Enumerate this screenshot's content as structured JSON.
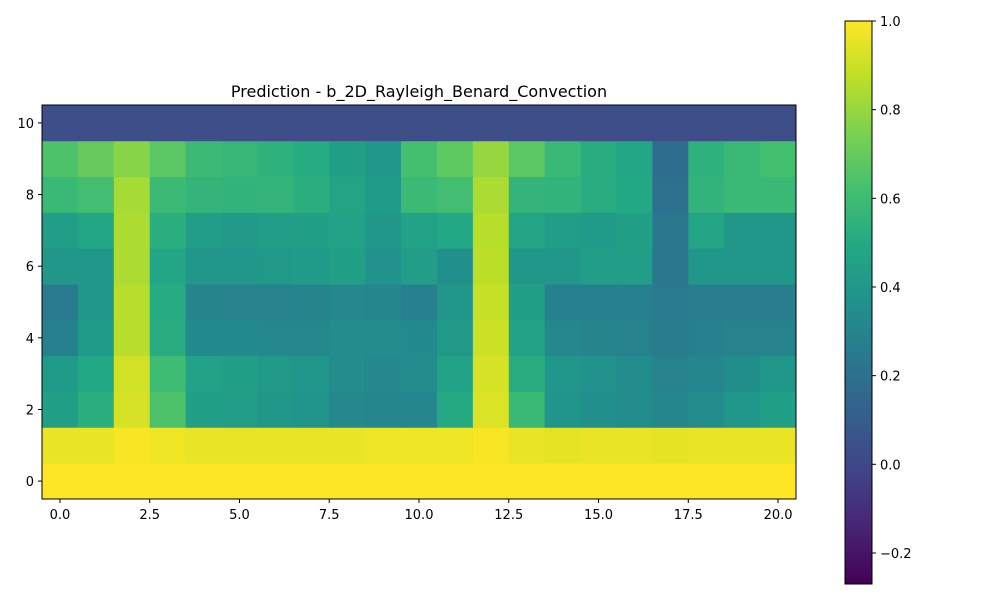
{
  "chart_data": {
    "type": "heatmap",
    "title": "Prediction - b_2D_Rayleigh_Benard_Convection",
    "xlabel": "",
    "ylabel": "",
    "colormap": "viridis",
    "xlim": [
      -0.5,
      20.5
    ],
    "ylim": [
      -0.5,
      10.5
    ],
    "x_ticks": [
      {
        "value": 0.0,
        "label": "0.0"
      },
      {
        "value": 2.5,
        "label": "2.5"
      },
      {
        "value": 5.0,
        "label": "5.0"
      },
      {
        "value": 7.5,
        "label": "7.5"
      },
      {
        "value": 10.0,
        "label": "10.0"
      },
      {
        "value": 12.5,
        "label": "12.5"
      },
      {
        "value": 15.0,
        "label": "15.0"
      },
      {
        "value": 17.5,
        "label": "17.5"
      },
      {
        "value": 20.0,
        "label": "20.0"
      }
    ],
    "y_ticks": [
      {
        "value": 0,
        "label": "0"
      },
      {
        "value": 2,
        "label": "2"
      },
      {
        "value": 4,
        "label": "4"
      },
      {
        "value": 6,
        "label": "6"
      },
      {
        "value": 8,
        "label": "8"
      },
      {
        "value": 10,
        "label": "10"
      }
    ],
    "colorbar": {
      "vmin": -0.27,
      "vmax": 1.0,
      "ticks": [
        {
          "value": -0.2,
          "label": "−0.2"
        },
        {
          "value": 0.0,
          "label": "0.0"
        },
        {
          "value": 0.2,
          "label": "0.2"
        },
        {
          "value": 0.4,
          "label": "0.4"
        },
        {
          "value": 0.6,
          "label": "0.6"
        },
        {
          "value": 0.8,
          "label": "0.8"
        },
        {
          "value": 1.0,
          "label": "1.0"
        }
      ]
    },
    "rows_y": [
      0,
      1,
      2,
      3,
      4,
      5,
      6,
      7,
      8,
      9,
      10
    ],
    "columns_x": [
      0,
      1,
      2,
      3,
      4,
      5,
      6,
      7,
      8,
      9,
      10,
      11,
      12,
      13,
      14,
      15,
      16,
      17,
      18,
      19,
      20
    ],
    "values": [
      [
        1.0,
        1.0,
        1.0,
        1.0,
        1.0,
        1.0,
        1.0,
        1.0,
        1.0,
        1.0,
        1.0,
        1.0,
        1.0,
        1.0,
        1.0,
        1.0,
        1.0,
        1.0,
        1.0,
        1.0,
        1.0
      ],
      [
        0.96,
        0.96,
        0.99,
        0.97,
        0.96,
        0.96,
        0.96,
        0.96,
        0.96,
        0.97,
        0.97,
        0.97,
        0.99,
        0.96,
        0.95,
        0.96,
        0.96,
        0.95,
        0.96,
        0.96,
        0.96
      ],
      [
        0.44,
        0.53,
        0.92,
        0.64,
        0.45,
        0.43,
        0.4,
        0.38,
        0.32,
        0.31,
        0.31,
        0.5,
        0.93,
        0.58,
        0.38,
        0.36,
        0.34,
        0.31,
        0.34,
        0.39,
        0.45
      ],
      [
        0.42,
        0.49,
        0.91,
        0.6,
        0.46,
        0.44,
        0.41,
        0.39,
        0.34,
        0.32,
        0.34,
        0.46,
        0.92,
        0.52,
        0.39,
        0.37,
        0.34,
        0.29,
        0.31,
        0.35,
        0.4
      ],
      [
        0.28,
        0.42,
        0.86,
        0.52,
        0.33,
        0.33,
        0.32,
        0.32,
        0.34,
        0.34,
        0.33,
        0.41,
        0.9,
        0.46,
        0.32,
        0.3,
        0.29,
        0.26,
        0.28,
        0.29,
        0.29
      ],
      [
        0.25,
        0.4,
        0.86,
        0.51,
        0.3,
        0.29,
        0.29,
        0.3,
        0.32,
        0.31,
        0.28,
        0.39,
        0.89,
        0.45,
        0.28,
        0.28,
        0.28,
        0.25,
        0.27,
        0.27,
        0.27
      ],
      [
        0.4,
        0.4,
        0.84,
        0.48,
        0.39,
        0.39,
        0.41,
        0.42,
        0.45,
        0.37,
        0.43,
        0.36,
        0.87,
        0.4,
        0.4,
        0.43,
        0.43,
        0.24,
        0.4,
        0.4,
        0.4
      ],
      [
        0.43,
        0.48,
        0.84,
        0.53,
        0.43,
        0.41,
        0.43,
        0.45,
        0.46,
        0.4,
        0.46,
        0.49,
        0.86,
        0.47,
        0.43,
        0.42,
        0.44,
        0.24,
        0.47,
        0.4,
        0.4
      ],
      [
        0.58,
        0.61,
        0.83,
        0.59,
        0.56,
        0.55,
        0.56,
        0.53,
        0.47,
        0.42,
        0.59,
        0.61,
        0.84,
        0.56,
        0.55,
        0.52,
        0.49,
        0.2,
        0.55,
        0.58,
        0.58
      ],
      [
        0.64,
        0.7,
        0.77,
        0.67,
        0.59,
        0.57,
        0.54,
        0.51,
        0.45,
        0.4,
        0.62,
        0.68,
        0.8,
        0.67,
        0.58,
        0.52,
        0.48,
        0.18,
        0.54,
        0.58,
        0.62
      ],
      [
        0.03,
        0.03,
        0.03,
        0.03,
        0.03,
        0.03,
        0.03,
        0.03,
        0.03,
        0.03,
        0.03,
        0.03,
        0.03,
        0.03,
        0.03,
        0.03,
        0.03,
        0.03,
        0.03,
        0.03,
        0.03
      ]
    ]
  }
}
